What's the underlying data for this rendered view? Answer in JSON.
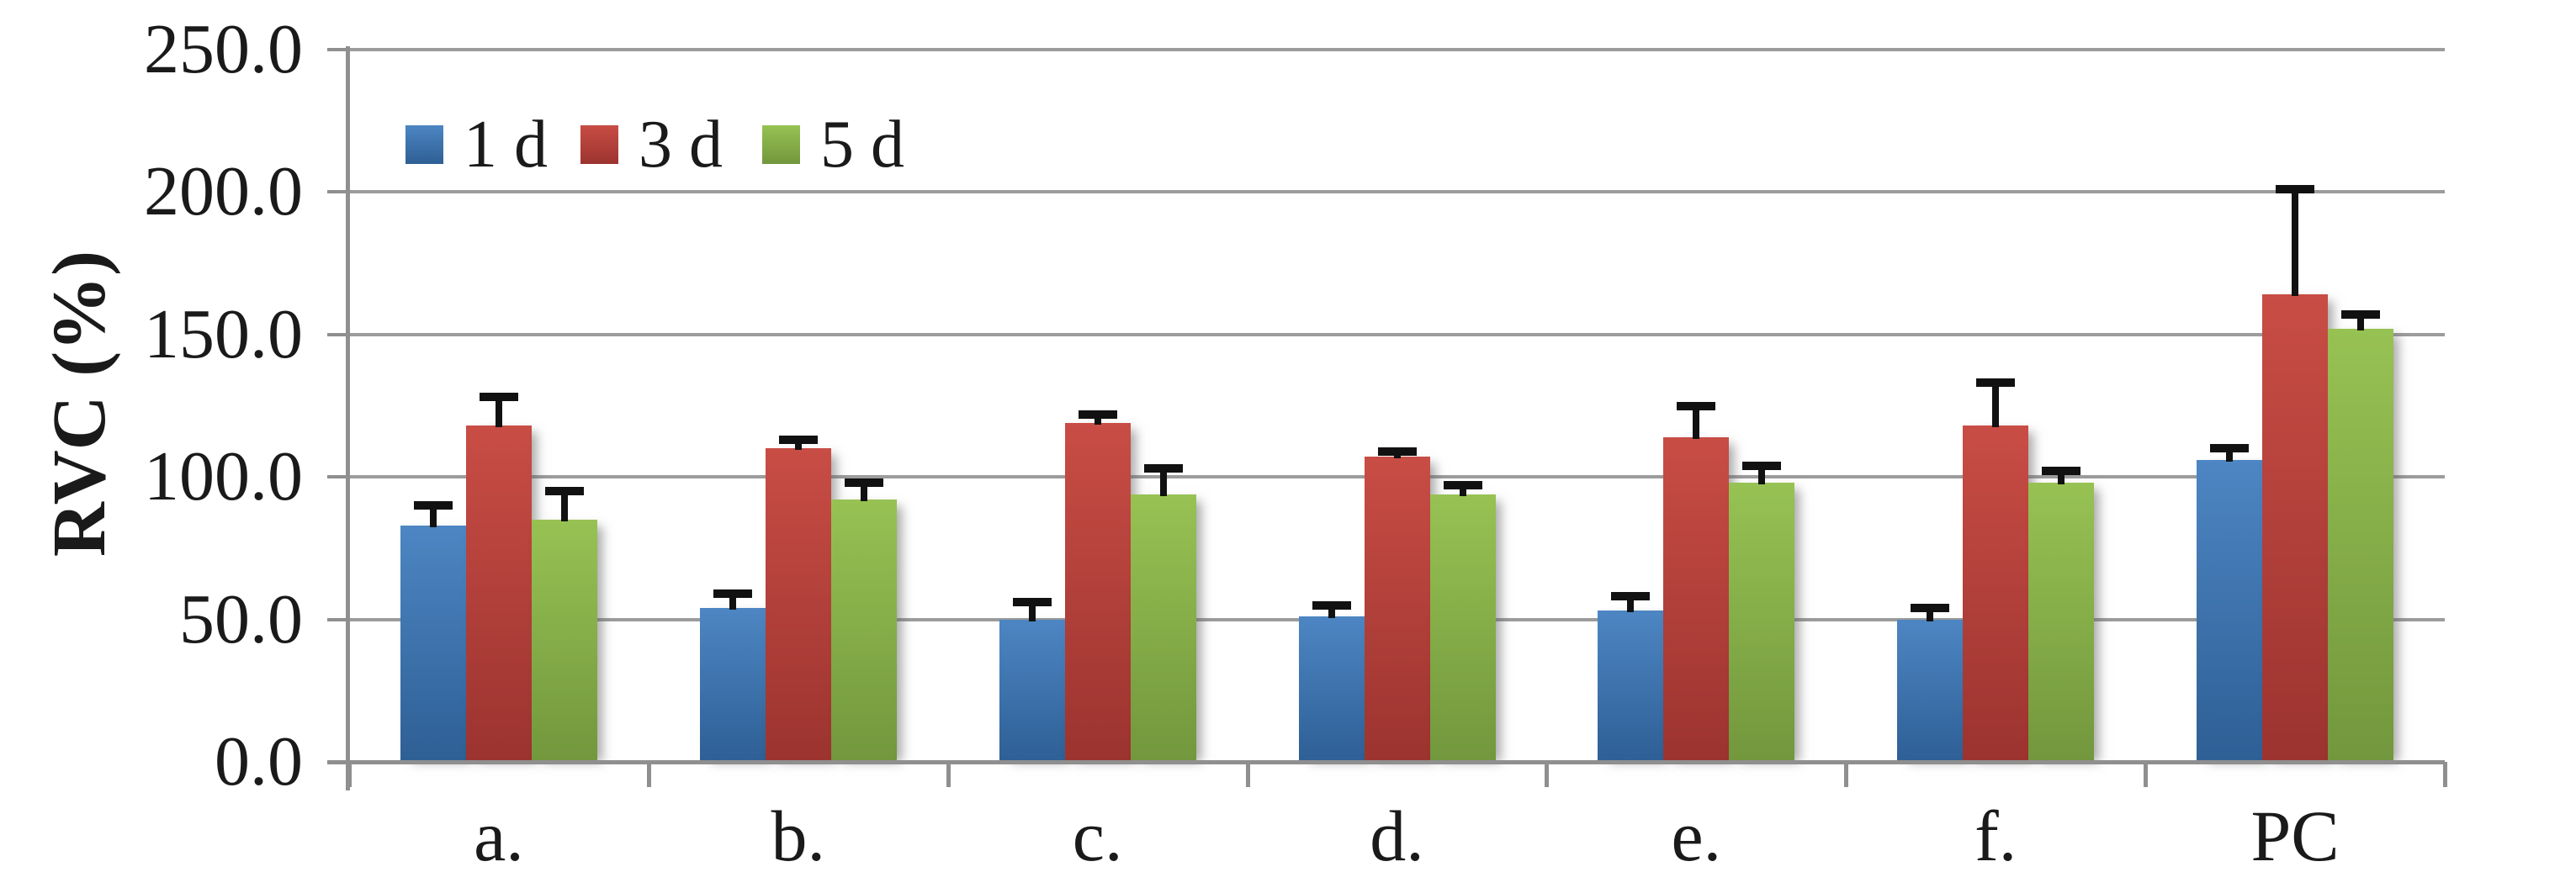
{
  "chart_data": {
    "type": "bar",
    "title": "",
    "xlabel": "",
    "ylabel": "RVC (%)",
    "ylim": [
      0,
      250
    ],
    "y_ticks": [
      0,
      50,
      100,
      150,
      200,
      250
    ],
    "y_tick_labels": [
      "0.0",
      "50.0",
      "100.0",
      "150.0",
      "200.0",
      "250.0"
    ],
    "categories": [
      "a.",
      "b.",
      "c.",
      "d.",
      "e.",
      "f.",
      "PC"
    ],
    "grid": true,
    "legend_position": "top-left-inside",
    "error_bars": "plus-only",
    "series": [
      {
        "name": "1 d",
        "color": "#3d76b4",
        "color_top": "#4d86c3",
        "color_bottom": "#2e5f95",
        "values": [
          83,
          54,
          50,
          51,
          53,
          50,
          106
        ],
        "errors_plus": [
          7,
          5,
          6,
          4,
          5,
          4,
          4
        ]
      },
      {
        "name": "3 d",
        "color": "#bc3d37",
        "color_top": "#c84d45",
        "color_bottom": "#9c332f",
        "values": [
          118,
          110,
          119,
          107,
          114,
          118,
          164
        ],
        "errors_plus": [
          10,
          3,
          3,
          2,
          11,
          15,
          37
        ]
      },
      {
        "name": "5 d",
        "color": "#8cb93f",
        "color_top": "#97c253",
        "color_bottom": "#72973d",
        "values": [
          85,
          92,
          94,
          94,
          98,
          98,
          152
        ],
        "errors_plus": [
          10,
          6,
          9,
          3,
          6,
          4,
          5
        ]
      }
    ],
    "style": {
      "grid_color": "#9c9c9c",
      "axis_color": "#8f8f8f",
      "error_color": "#111111",
      "text_color": "#1a1a1a"
    }
  }
}
